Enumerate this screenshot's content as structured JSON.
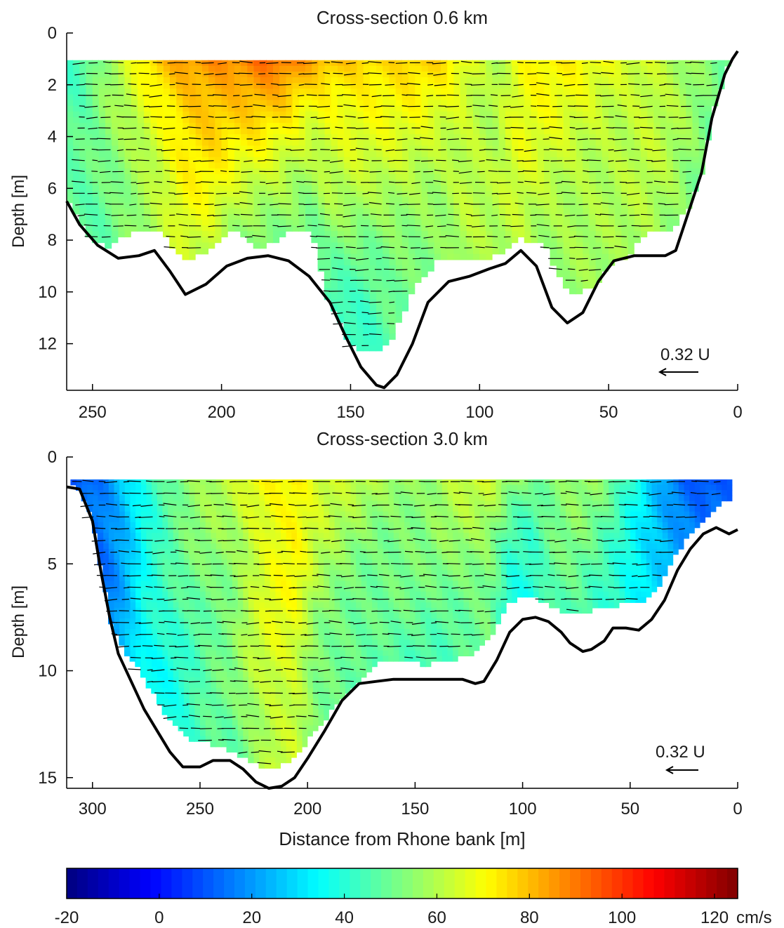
{
  "chart_data": [
    {
      "type": "heatmap",
      "title": "Cross-section 0.6 km",
      "xlabel": "",
      "ylabel": "Depth [m]",
      "x_reversed": true,
      "y_reversed": true,
      "xlim": [
        0,
        260
      ],
      "ylim": [
        0,
        13.8
      ],
      "xticks": [
        "250",
        "200",
        "150",
        "100",
        "50",
        "0"
      ],
      "yticks": [
        "0",
        "2",
        "4",
        "6",
        "8",
        "10",
        "12"
      ],
      "xtick_values": [
        250,
        200,
        150,
        100,
        50,
        0
      ],
      "ytick_values": [
        0,
        2,
        4,
        6,
        8,
        10,
        12
      ],
      "grid": false,
      "scale_label": "0.32 U",
      "bed_profile": {
        "distance": [
          260,
          255,
          248,
          240,
          232,
          226,
          220,
          214,
          206,
          198,
          190,
          182,
          174,
          166,
          158,
          152,
          146,
          140,
          137,
          132,
          126,
          120,
          112,
          104,
          96,
          90,
          84,
          78,
          72,
          66,
          60,
          54,
          48,
          40,
          34,
          28,
          24,
          20,
          14,
          10,
          5,
          2,
          0
        ],
        "depth": [
          6.5,
          7.4,
          8.2,
          8.7,
          8.6,
          8.4,
          9.2,
          10.1,
          9.7,
          9.0,
          8.7,
          8.6,
          8.8,
          9.4,
          10.4,
          11.7,
          12.9,
          13.6,
          13.7,
          13.2,
          12.0,
          10.4,
          9.6,
          9.4,
          9.1,
          8.9,
          8.4,
          9.0,
          10.6,
          11.2,
          10.8,
          9.6,
          8.8,
          8.6,
          8.6,
          8.6,
          8.4,
          7.2,
          5.4,
          3.3,
          1.6,
          1.0,
          0.7
        ]
      },
      "velocity_profile": {
        "unit": "cm/s",
        "distance": [
          255,
          245,
          235,
          225,
          215,
          205,
          195,
          185,
          175,
          165,
          155,
          145,
          135,
          125,
          115,
          105,
          95,
          85,
          75,
          65,
          55,
          45,
          35,
          25,
          15,
          8
        ],
        "surface_speed": [
          45,
          55,
          65,
          78,
          85,
          88,
          87,
          90,
          88,
          82,
          80,
          78,
          75,
          76,
          74,
          68,
          60,
          70,
          72,
          70,
          68,
          66,
          66,
          60,
          54,
          50
        ],
        "bottom_speed": [
          48,
          50,
          55,
          58,
          62,
          62,
          58,
          52,
          52,
          48,
          42,
          40,
          46,
          50,
          52,
          58,
          58,
          62,
          58,
          55,
          55,
          56,
          58,
          56,
          52,
          48
        ],
        "data_bottom": [
          7.4,
          8.2,
          7.6,
          7.4,
          8.7,
          8.3,
          7.4,
          8.3,
          7.6,
          7.5,
          11.8,
          12.2,
          12.0,
          9.6,
          8.6,
          8.7,
          8.6,
          7.8,
          8.1,
          10.0,
          9.6,
          8.8,
          7.6,
          7.4,
          6.0,
          3.2
        ]
      }
    },
    {
      "type": "heatmap",
      "title": "Cross-section 3.0 km",
      "xlabel": "Distance from Rhone bank [m]",
      "ylabel": "Depth [m]",
      "x_reversed": true,
      "y_reversed": true,
      "xlim": [
        0,
        312
      ],
      "ylim": [
        0,
        15.5
      ],
      "xticks": [
        "300",
        "250",
        "200",
        "150",
        "100",
        "50",
        "0"
      ],
      "yticks": [
        "0",
        "5",
        "10",
        "15"
      ],
      "xtick_values": [
        300,
        250,
        200,
        150,
        100,
        50,
        0
      ],
      "ytick_values": [
        0,
        5,
        10,
        15
      ],
      "grid": false,
      "scale_label": "0.32 U",
      "bed_profile": {
        "distance": [
          312,
          306,
          300,
          296,
          292,
          288,
          282,
          276,
          270,
          264,
          258,
          250,
          244,
          236,
          230,
          224,
          218,
          212,
          206,
          200,
          192,
          184,
          176,
          168,
          160,
          152,
          144,
          136,
          128,
          122,
          118,
          112,
          106,
          100,
          94,
          88,
          82,
          78,
          72,
          68,
          62,
          58,
          52,
          46,
          40,
          34,
          28,
          22,
          16,
          10,
          4,
          0
        ],
        "depth": [
          1.4,
          1.5,
          3.0,
          5.4,
          7.5,
          9.2,
          10.5,
          11.8,
          12.8,
          13.8,
          14.5,
          14.5,
          14.2,
          14.2,
          14.6,
          15.2,
          15.5,
          15.4,
          15.0,
          14.1,
          12.8,
          11.4,
          10.6,
          10.5,
          10.4,
          10.4,
          10.4,
          10.4,
          10.4,
          10.6,
          10.5,
          9.5,
          8.2,
          7.6,
          7.5,
          7.7,
          8.2,
          8.7,
          9.1,
          9.0,
          8.6,
          8.0,
          8.0,
          8.1,
          7.6,
          6.7,
          5.3,
          4.3,
          3.6,
          3.3,
          3.6,
          3.4
        ]
      },
      "velocity_profile": {
        "unit": "cm/s",
        "distance": [
          306,
          296,
          286,
          276,
          266,
          256,
          246,
          236,
          226,
          216,
          206,
          196,
          186,
          176,
          166,
          156,
          146,
          136,
          126,
          116,
          106,
          96,
          86,
          76,
          66,
          56,
          46,
          36,
          26,
          16,
          8
        ],
        "surface_speed": [
          10,
          14,
          26,
          40,
          50,
          56,
          58,
          60,
          68,
          72,
          74,
          66,
          62,
          60,
          58,
          58,
          56,
          60,
          62,
          62,
          56,
          52,
          54,
          56,
          54,
          46,
          36,
          24,
          14,
          8,
          10
        ],
        "bottom_speed": [
          12,
          14,
          22,
          34,
          36,
          40,
          46,
          48,
          56,
          62,
          62,
          50,
          48,
          46,
          46,
          46,
          46,
          46,
          48,
          50,
          36,
          36,
          46,
          48,
          44,
          40,
          32,
          26,
          18,
          12,
          12
        ],
        "data_bottom": [
          3.5,
          7.0,
          8.8,
          10.2,
          12.0,
          13.0,
          13.3,
          13.6,
          14.2,
          14.5,
          14.0,
          12.6,
          11.4,
          10.3,
          9.4,
          9.4,
          9.6,
          9.4,
          9.2,
          8.5,
          6.6,
          6.4,
          6.9,
          7.3,
          7.0,
          6.8,
          6.8,
          5.8,
          4.0,
          2.8,
          2.0
        ]
      }
    }
  ],
  "colorbar": {
    "label": "cm/s",
    "min": -20,
    "max": 125,
    "ticks": [
      "-20",
      "0",
      "20",
      "40",
      "60",
      "80",
      "100",
      "120"
    ],
    "tick_values": [
      -20,
      0,
      20,
      40,
      60,
      80,
      100,
      120
    ],
    "colormap": "jet"
  }
}
